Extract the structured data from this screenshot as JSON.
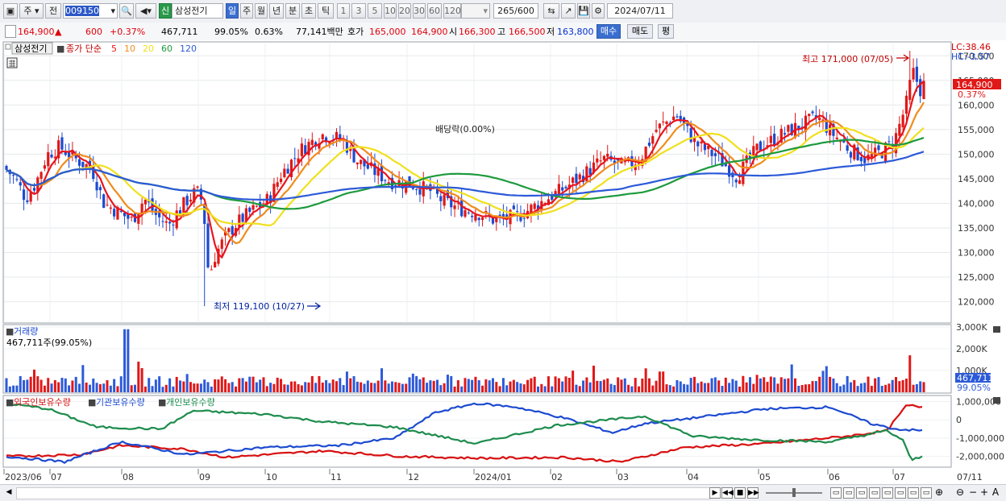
{
  "toolbar": {
    "period_type": "주",
    "prev": "전",
    "code": "009150",
    "credit_badge": "신",
    "stock_name": "삼성전기",
    "periods": [
      "일",
      "주",
      "월",
      "년",
      "분",
      "초",
      "틱"
    ],
    "numbers": [
      "1",
      "3",
      "5",
      "10",
      "20",
      "30",
      "60",
      "120"
    ],
    "count": "265",
    "count_total": "/600",
    "date": "2024/07/11"
  },
  "quote": {
    "price": "164,900",
    "change": "600",
    "change_pct": "+0.37%",
    "volume": "467,711",
    "vol_ratio": "99.05%",
    "turnover": "0.63%",
    "amount": "77,141백만",
    "ask_label": "호가",
    "ask1": "165,000",
    "ask2": "164,900",
    "open_label": "시",
    "open": "166,300",
    "high_label": "고",
    "high": "166,500",
    "low_label": "저",
    "low": "163,800",
    "buy": "매수",
    "sell": "매도",
    "eval": "평"
  },
  "legend": {
    "name": "삼성전기",
    "ma_prefix": "종가 단순",
    "ma": [
      {
        "p": "5",
        "color": "#e8141c"
      },
      {
        "p": "10",
        "color": "#f08c1c"
      },
      {
        "p": "20",
        "color": "#f0e01c"
      },
      {
        "p": "60",
        "color": "#1c9a3c"
      },
      {
        "p": "120",
        "color": "#2c5ad8"
      }
    ],
    "lc": "LC:38.46",
    "hc": "HC:-3.57",
    "price_tag": "164,900",
    "pct_tag": "0.37%",
    "high_anno": "최고 171,000 (07/05)",
    "low_anno": "최저 119,100 (10/27)",
    "dividend": "배당락(0.00%)"
  },
  "volume_panel": {
    "title": "거래량",
    "value": "467,711주(99.05%)",
    "tag": "467,711",
    "tag_pct": "99.05%"
  },
  "holders_panel": {
    "labels": [
      "외국인보유수량",
      "기관보유수량",
      "개인보유수량"
    ],
    "colors": [
      "#d81010",
      "#1c4ad0",
      "#1c8c4c"
    ]
  },
  "chart_data": [
    {
      "type": "candlestick",
      "title": "삼성전기",
      "series": [
        {
          "name": "5"
        },
        {
          "name": "10"
        },
        {
          "name": "20"
        },
        {
          "name": "60"
        },
        {
          "name": "120"
        }
      ],
      "y_ticks": [
        120000,
        125000,
        130000,
        135000,
        140000,
        145000,
        150000,
        155000,
        160000,
        165000,
        170000
      ],
      "ylim": [
        116000,
        172500
      ],
      "x_ticks": [
        "2023/06",
        "07",
        "08",
        "09",
        "10",
        "11",
        "12",
        "2024/01",
        "02",
        "03",
        "04",
        "05",
        "06",
        "07",
        "07/11"
      ],
      "high": 171000,
      "high_date": "07/05",
      "low": 119100,
      "low_date": "10/27",
      "last": 164900
    },
    {
      "type": "bar",
      "title": "거래량",
      "y_ticks": [
        "3,000K",
        "2,000K",
        "1,000K"
      ],
      "ylim": [
        0,
        3000000
      ],
      "last": 467711
    },
    {
      "type": "line",
      "y_ticks": [
        "1,000,000",
        "0",
        "-1,000,000",
        "-2,000,000"
      ],
      "series": [
        {
          "name": "외국인보유수량"
        },
        {
          "name": "기관보유수량"
        },
        {
          "name": "개인보유수량"
        }
      ]
    }
  ]
}
